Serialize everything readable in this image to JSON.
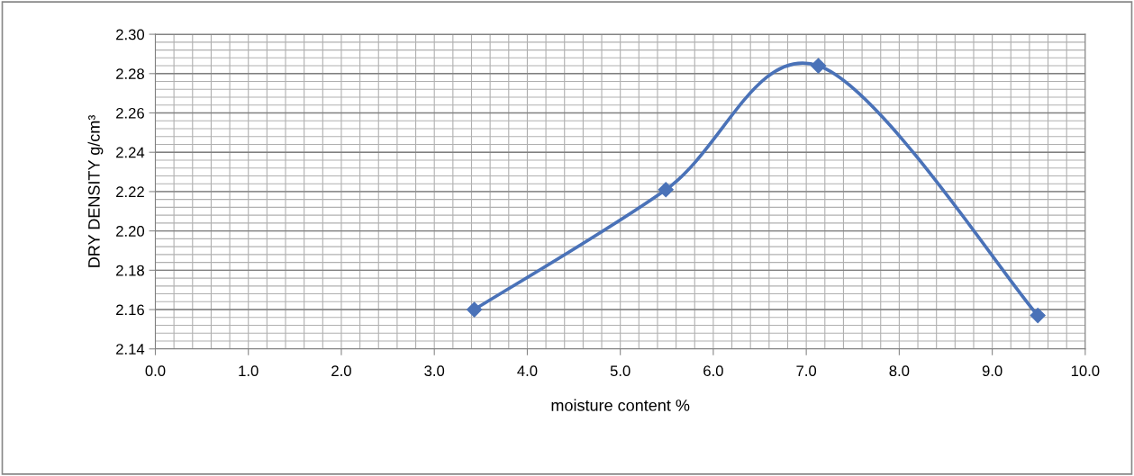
{
  "chart_data": {
    "type": "line",
    "xlabel": "moisture content %",
    "ylabel": "DRY DENSITY g/cm³",
    "series": [
      {
        "color": "#4a72b8",
        "x": [
          3.43,
          5.49,
          7.13,
          9.49
        ],
        "values": [
          2.16,
          2.221,
          2.284,
          2.157
        ]
      }
    ],
    "marker": "diamond",
    "line_style": "solid",
    "grid": true,
    "legend": false,
    "xlim": [
      0,
      10
    ],
    "xticks": [
      {
        "value": 0,
        "label": "0.0"
      },
      {
        "value": 1,
        "label": "1.0"
      },
      {
        "value": 2,
        "label": "2.0"
      },
      {
        "value": 3,
        "label": "3.0"
      },
      {
        "value": 4,
        "label": "4.0"
      },
      {
        "value": 5,
        "label": "5.0"
      },
      {
        "value": 6,
        "label": "6.0"
      },
      {
        "value": 7,
        "label": "7.0"
      },
      {
        "value": 8,
        "label": "8.0"
      },
      {
        "value": 9,
        "label": "9.0"
      },
      {
        "value": 10,
        "label": "10.0"
      }
    ],
    "ylim": [
      2.14,
      2.3
    ],
    "yticks": [
      2.14,
      2.16,
      2.18,
      {
        "value": 2.2,
        "label": "2.20"
      },
      2.22,
      2.24,
      2.26,
      2.28,
      {
        "value": 2.3,
        "label": "2.30"
      }
    ]
  }
}
